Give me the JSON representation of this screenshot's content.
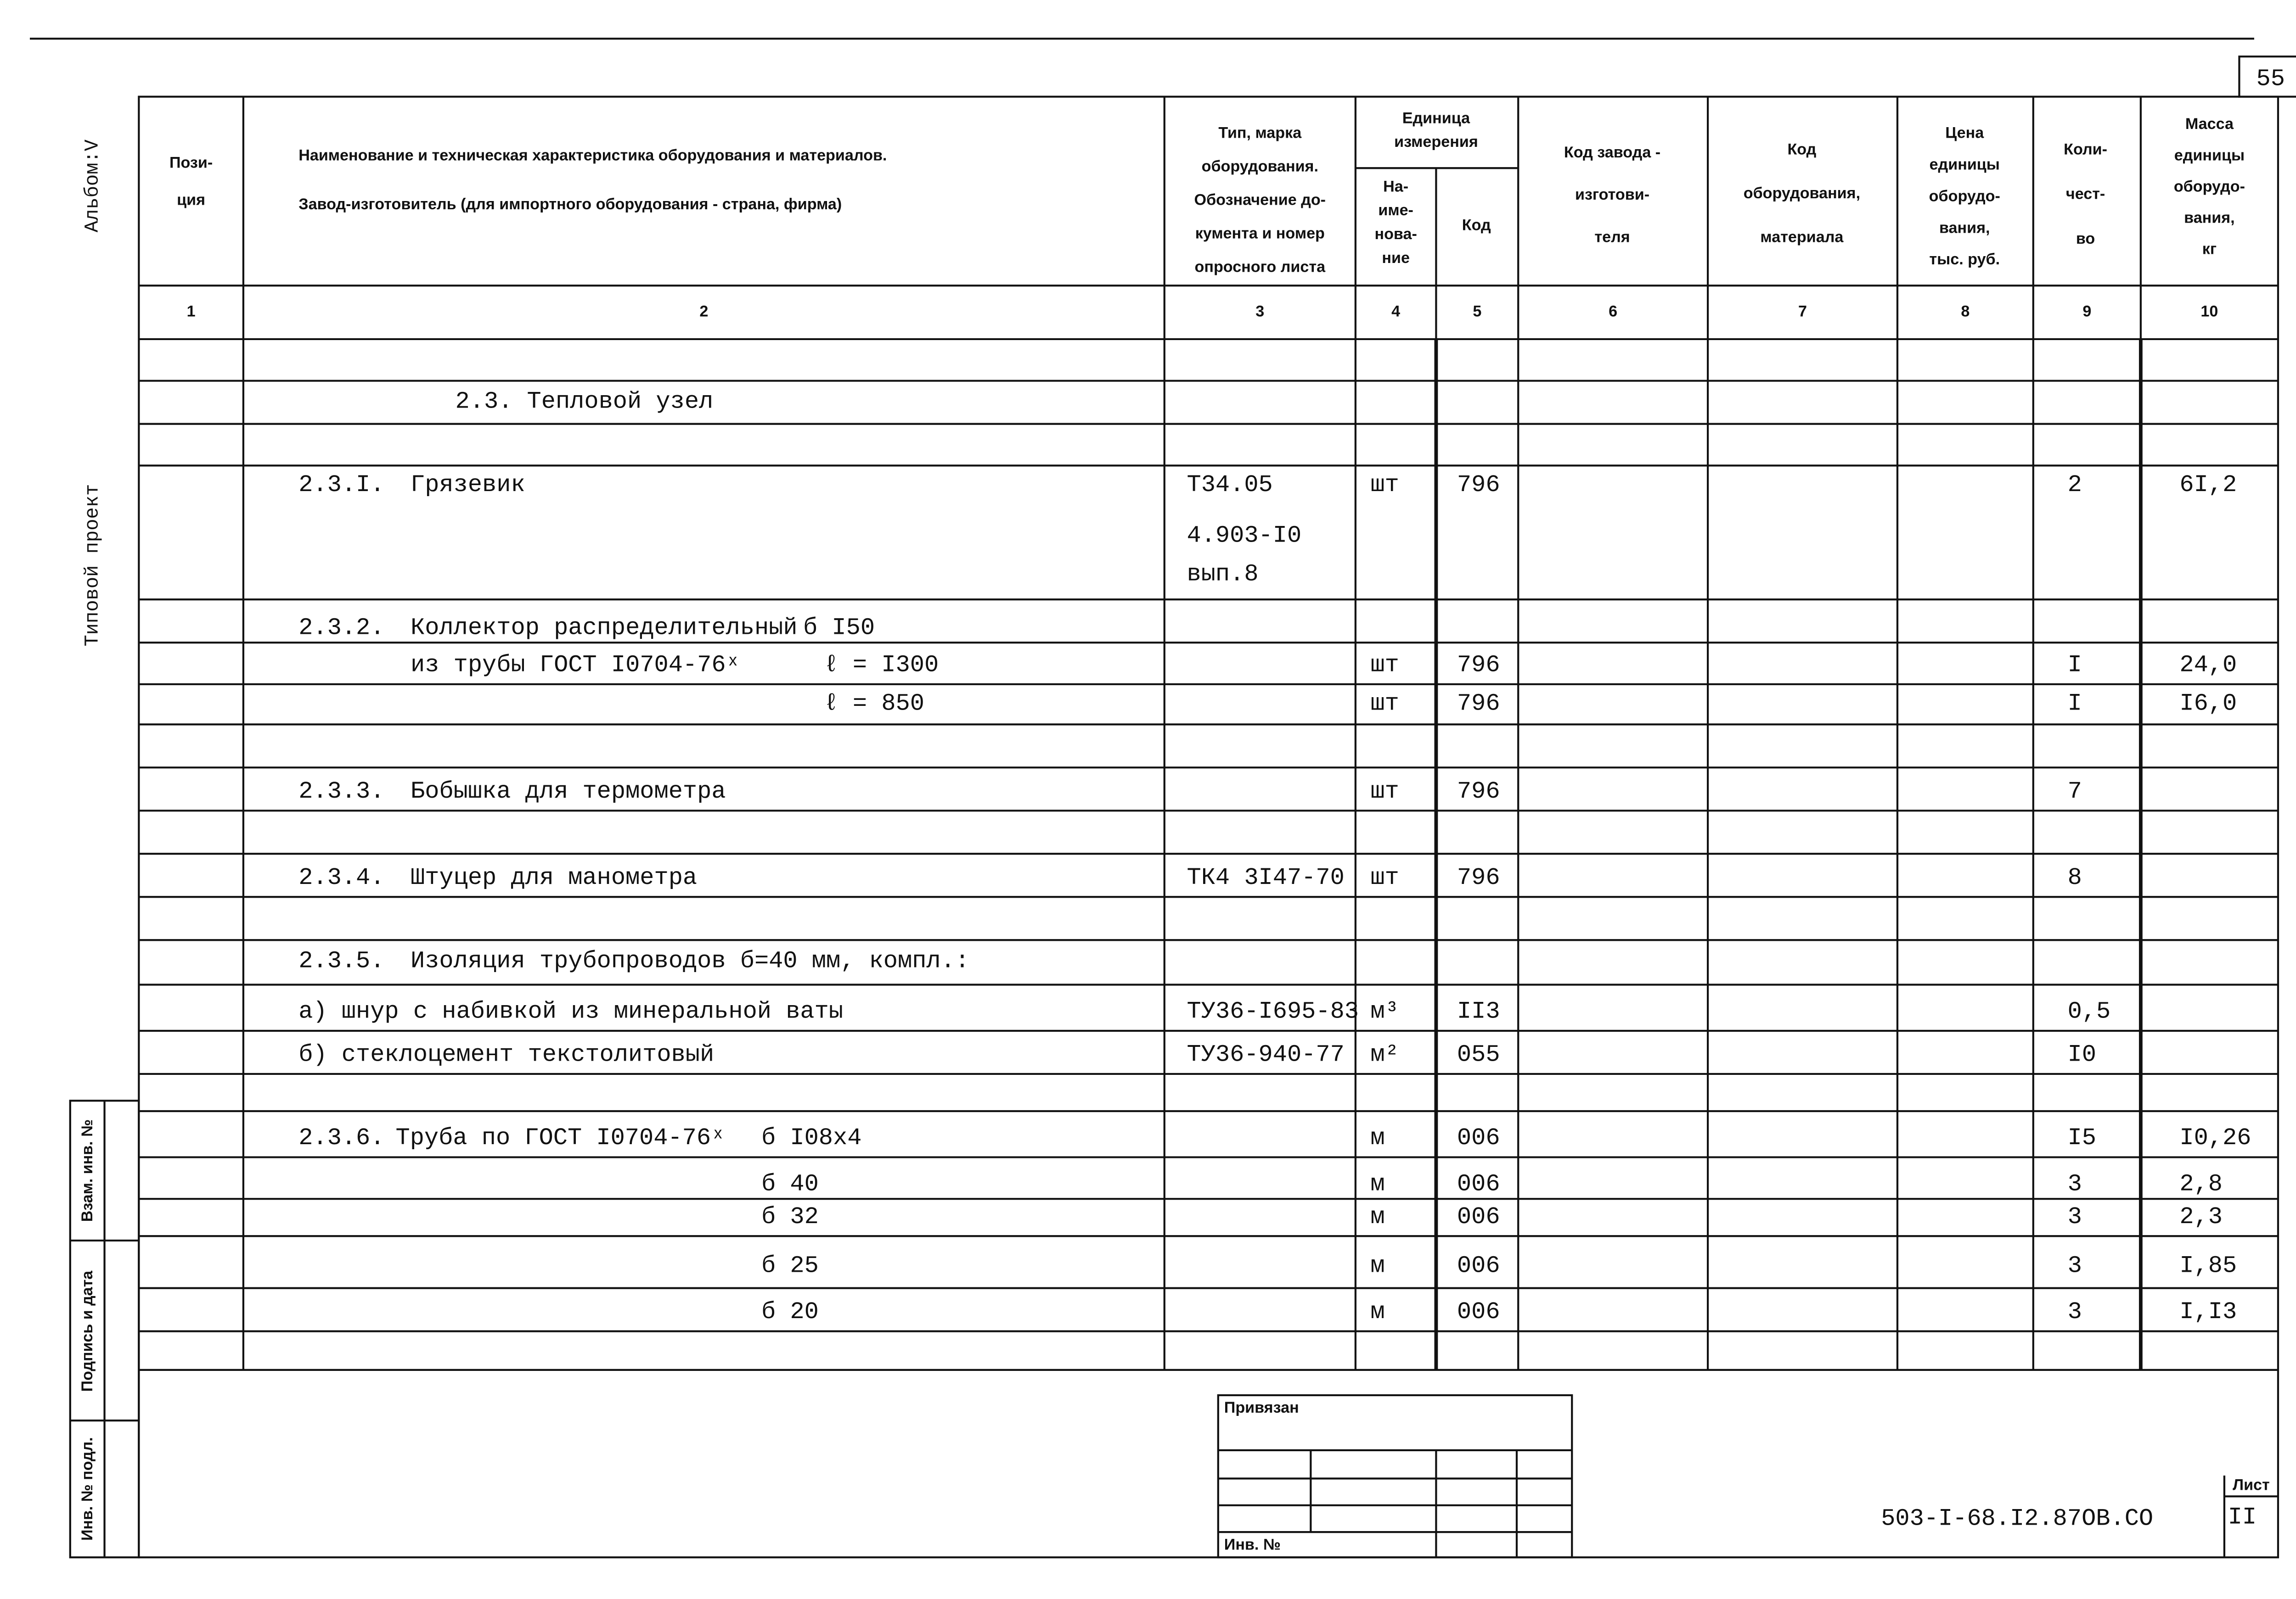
{
  "page_number": "55",
  "side": {
    "album": "Альбом:V",
    "project": "Типовой проект",
    "stamps": [
      "Инв. № подл.",
      "Подпись и дата",
      "Взам. инв. №"
    ]
  },
  "header": {
    "position": [
      "Пози-",
      "ция"
    ],
    "name": [
      "Наименование и техническая характеристика  оборудования и материалов.",
      "Завод-изготовитель  (для импортного оборудования -  страна, фирма)"
    ],
    "type": [
      "Тип,     марка",
      "оборудования.",
      "Обозначение  до-",
      "кумента  и  номер",
      "опросного  листа"
    ],
    "unit": [
      "Единица",
      "измерения"
    ],
    "unit_name": [
      "На-",
      "име-",
      "нова-",
      "ние"
    ],
    "unit_code": [
      "Код"
    ],
    "factory_code": [
      "Код  завода -",
      "изготови-",
      "теля"
    ],
    "equipment_code": [
      "Код",
      "оборудования,",
      "материала"
    ],
    "price": [
      "Цена",
      "единицы",
      "оборудо-",
      "вания,",
      "тыс. руб."
    ],
    "quantity": [
      "Коли-",
      "чест-",
      "во"
    ],
    "mass": [
      "Масса",
      "единицы",
      "оборудо-",
      "вания,",
      "кг"
    ]
  },
  "column_numbers": [
    "1",
    "2",
    "3",
    "4",
    "5",
    "6",
    "7",
    "8",
    "9",
    "10"
  ],
  "rows": [
    {
      "title": "2.3. Тепловой узел"
    },
    {
      "num": "2.3.I.",
      "name": "Грязевик",
      "doc": "Т34.05",
      "unit": "шт",
      "code": "796",
      "qty": "2",
      "mass": "6I,2"
    },
    {
      "doc": "4.903-I0"
    },
    {
      "doc": "вып.8"
    },
    {
      "num": "2.3.2.",
      "name": "Коллектор распределительный",
      "dim": "б I50"
    },
    {
      "name": "из трубы ГОСТ I0704-76ˣ",
      "dim": "ℓ = I300",
      "unit": "шт",
      "code": "796",
      "qty": "I",
      "mass": "24,0"
    },
    {
      "dim": "ℓ = 850",
      "unit": "шт",
      "code": "796",
      "qty": "I",
      "mass": "I6,0"
    },
    {
      "num": "2.3.3.",
      "name": "Бобышка для термометра",
      "unit": "шт",
      "code": "796",
      "qty": "7"
    },
    {
      "num": "2.3.4.",
      "name": "Штуцер для манометра",
      "doc": "ТК4 3I47-70",
      "unit": "шт",
      "code": "796",
      "qty": "8"
    },
    {
      "num": "2.3.5.",
      "name": "Изоляция трубопроводов б=40 мм, компл.:"
    },
    {
      "item": "а) шнур с набивкой из минеральной ваты",
      "doc": "ТУ36-I695-83",
      "unit": "м³",
      "code": "II3",
      "qty": "0,5"
    },
    {
      "item": "б) стеклоцемент текстолитовый",
      "doc": "ТУ36-940-77",
      "unit": "м²",
      "code": "055",
      "qty": "I0"
    },
    {
      "num": "2.3.6.",
      "name": "Труба по ГОСТ I0704-76ˣ",
      "dim": "б  I08x4",
      "unit": "м",
      "code": "006",
      "qty": "I5",
      "mass": "I0,26"
    },
    {
      "dim": "б  40",
      "unit": "м",
      "code": "006",
      "qty": "3",
      "mass": "2,8"
    },
    {
      "dim": "б  32",
      "unit": "м",
      "code": "006",
      "qty": "3",
      "mass": "2,3"
    },
    {
      "dim": "б  25",
      "unit": "м",
      "code": "006",
      "qty": "3",
      "mass": "I,85"
    },
    {
      "dim": "б  20",
      "unit": "м",
      "code": "006",
      "qty": "3",
      "mass": "I,I3"
    }
  ],
  "stamp": {
    "bound": "Привязан",
    "inv": "Инв. №",
    "designation": "503-I-68.I2.87ОВ.СО",
    "sheet_label": "Лист",
    "sheet": "II"
  }
}
